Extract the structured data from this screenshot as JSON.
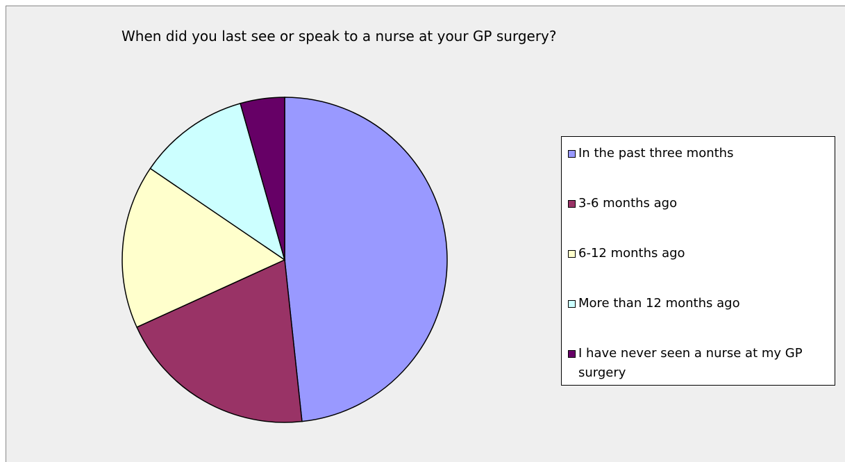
{
  "chart_data": {
    "type": "pie",
    "title": "When did you last see or speak to a nurse at your GP surgery?",
    "categories": [
      "In the past three months",
      "3-6 months ago",
      "6-12 months ago",
      "More than 12 months ago",
      "I have never seen a nurse at my GP surgery"
    ],
    "values": [
      48.3,
      19.9,
      16.3,
      11.1,
      4.4
    ],
    "colors": [
      "#9999ff",
      "#993366",
      "#ffffcc",
      "#ccffff",
      "#660066"
    ],
    "legend": "right"
  }
}
